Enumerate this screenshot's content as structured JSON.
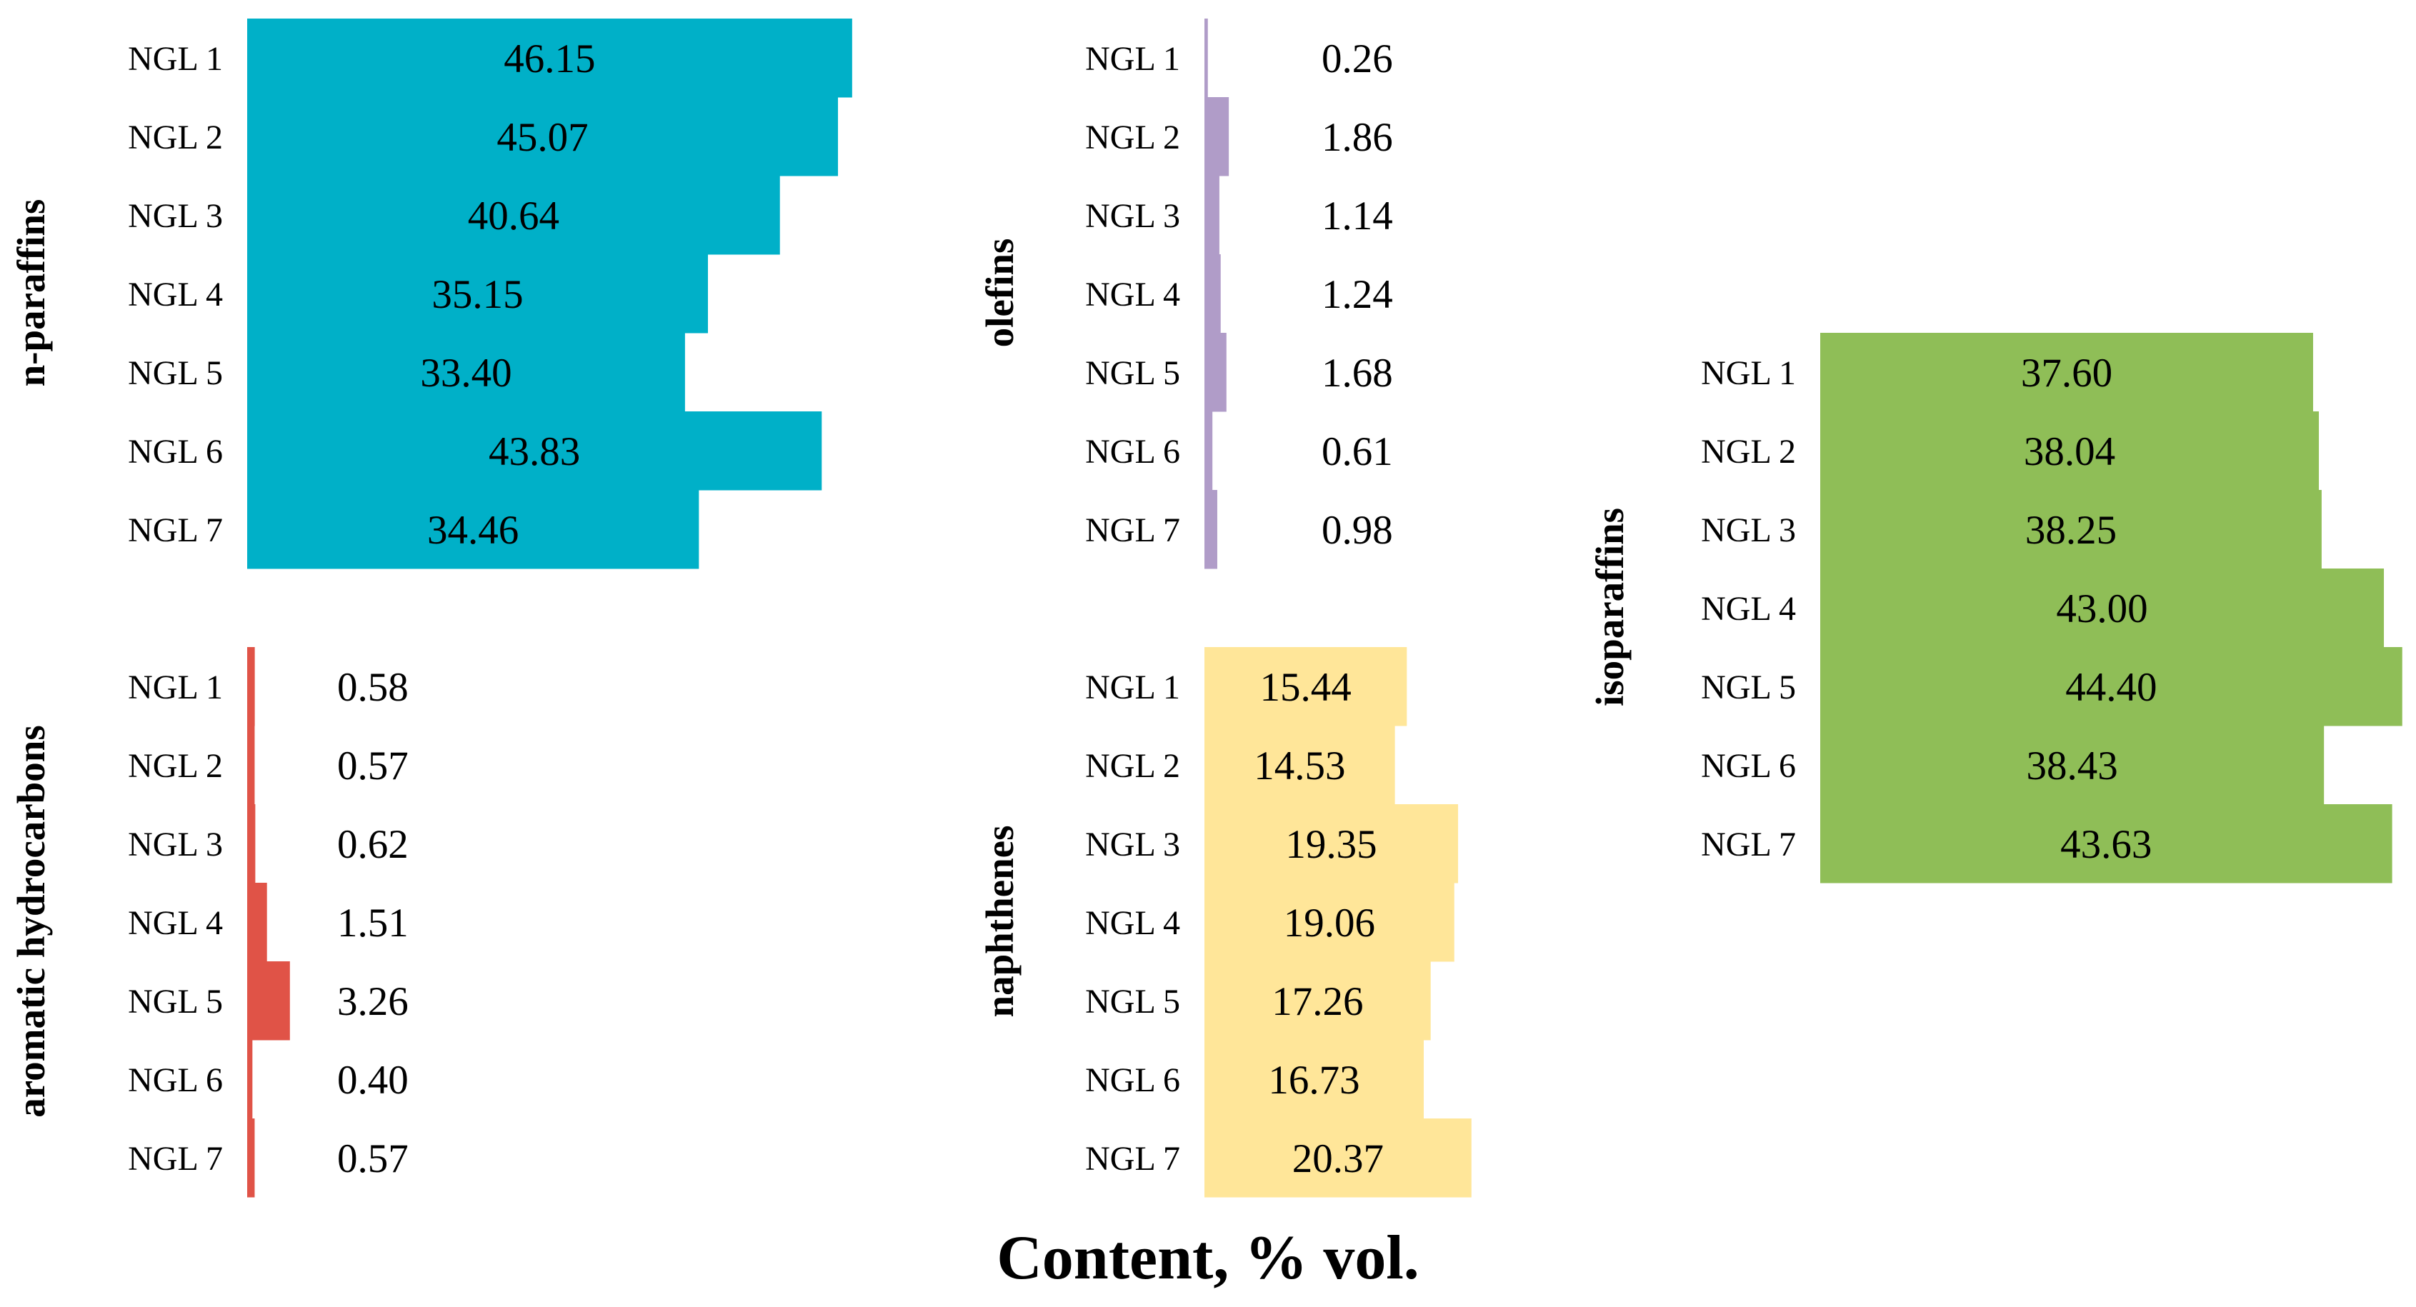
{
  "chart_data": {
    "type": "bar",
    "orientation": "horizontal",
    "xlabel": "Content, % vol.",
    "categories": [
      "NGL 1",
      "NGL 2",
      "NGL 3",
      "NGL 4",
      "NGL 5",
      "NGL 6",
      "NGL 7"
    ],
    "groups": [
      {
        "name": "n-paraffins",
        "color": "#00B0C8",
        "values": [
          46.15,
          45.07,
          40.64,
          35.15,
          33.4,
          43.83,
          34.46
        ],
        "value_labels": [
          "46.15",
          "45.07",
          "40.64",
          "35.15",
          "33.40",
          "43.83",
          "34.46"
        ]
      },
      {
        "name": "olefins",
        "color": "#B09CC8",
        "values": [
          0.26,
          1.86,
          1.14,
          1.24,
          1.68,
          0.61,
          0.98
        ],
        "value_labels": [
          "0.26",
          "1.86",
          "1.14",
          "1.24",
          "1.68",
          "0.61",
          "0.98"
        ]
      },
      {
        "name": "isoparaffins",
        "color": "#8FBE57",
        "values": [
          37.6,
          38.04,
          38.25,
          43.0,
          44.4,
          38.43,
          43.63
        ],
        "value_labels": [
          "37.60",
          "38.04",
          "38.25",
          "43.00",
          "44.40",
          "38.43",
          "43.63"
        ]
      },
      {
        "name": "aromatic hydrocarbons",
        "color": "#E05347",
        "values": [
          0.58,
          0.57,
          0.62,
          1.51,
          3.26,
          0.4,
          0.57
        ],
        "value_labels": [
          "0.58",
          "0.57",
          "0.62",
          "1.51",
          "3.26",
          "0.40",
          "0.57"
        ]
      },
      {
        "name": "naphthenes",
        "color": "#FFE699",
        "values": [
          15.44,
          14.53,
          19.35,
          19.06,
          17.26,
          16.73,
          20.37
        ],
        "value_labels": [
          "15.44",
          "14.53",
          "19.35",
          "19.06",
          "17.26",
          "16.73",
          "20.37"
        ]
      }
    ]
  }
}
